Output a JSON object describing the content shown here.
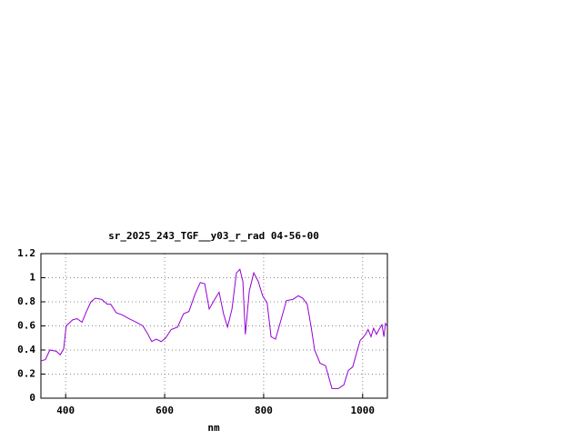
{
  "chart_data": {
    "type": "line",
    "title": "sr_2025_243_TGF__y03_r_rad 04-56-00",
    "x_label": "nm",
    "xlim": [
      350,
      1050
    ],
    "xticks": [
      400,
      600,
      800,
      1000
    ],
    "ylim": [
      0,
      1.2
    ],
    "yticks": [
      0,
      0.2,
      0.4,
      0.6,
      0.8,
      1,
      1.2
    ],
    "grid": true,
    "series": [
      {
        "color": "#9400d3",
        "x": [
          350,
          359,
          368,
          381,
          389,
          396,
          401,
          414,
          423,
          433,
          442,
          451,
          460,
          473,
          484,
          491,
          502,
          515,
          528,
          543,
          556,
          565,
          574,
          583,
          593,
          602,
          613,
          626,
          638,
          649,
          662,
          672,
          681,
          690,
          701,
          710,
          719,
          727,
          736,
          745,
          752,
          758,
          763,
          771,
          780,
          789,
          798,
          807,
          815,
          824,
          833,
          846,
          859,
          870,
          879,
          888,
          896,
          903,
          914,
          925,
          938,
          951,
          962,
          971,
          980,
          988,
          995,
          1000,
          1006,
          1011,
          1017,
          1022,
          1028,
          1033,
          1039,
          1043,
          1046,
          1050
        ],
        "values": [
          0.31,
          0.32,
          0.4,
          0.39,
          0.36,
          0.41,
          0.6,
          0.65,
          0.66,
          0.63,
          0.72,
          0.8,
          0.83,
          0.82,
          0.78,
          0.78,
          0.71,
          0.69,
          0.66,
          0.63,
          0.6,
          0.54,
          0.47,
          0.49,
          0.47,
          0.5,
          0.57,
          0.59,
          0.7,
          0.72,
          0.87,
          0.96,
          0.95,
          0.74,
          0.82,
          0.88,
          0.7,
          0.59,
          0.74,
          1.04,
          1.07,
          0.97,
          0.53,
          0.89,
          1.04,
          0.97,
          0.85,
          0.79,
          0.51,
          0.49,
          0.62,
          0.81,
          0.82,
          0.85,
          0.83,
          0.78,
          0.59,
          0.4,
          0.29,
          0.27,
          0.08,
          0.08,
          0.11,
          0.23,
          0.26,
          0.38,
          0.48,
          0.5,
          0.53,
          0.57,
          0.51,
          0.58,
          0.53,
          0.57,
          0.61,
          0.51,
          0.62,
          0.6
        ]
      }
    ]
  }
}
